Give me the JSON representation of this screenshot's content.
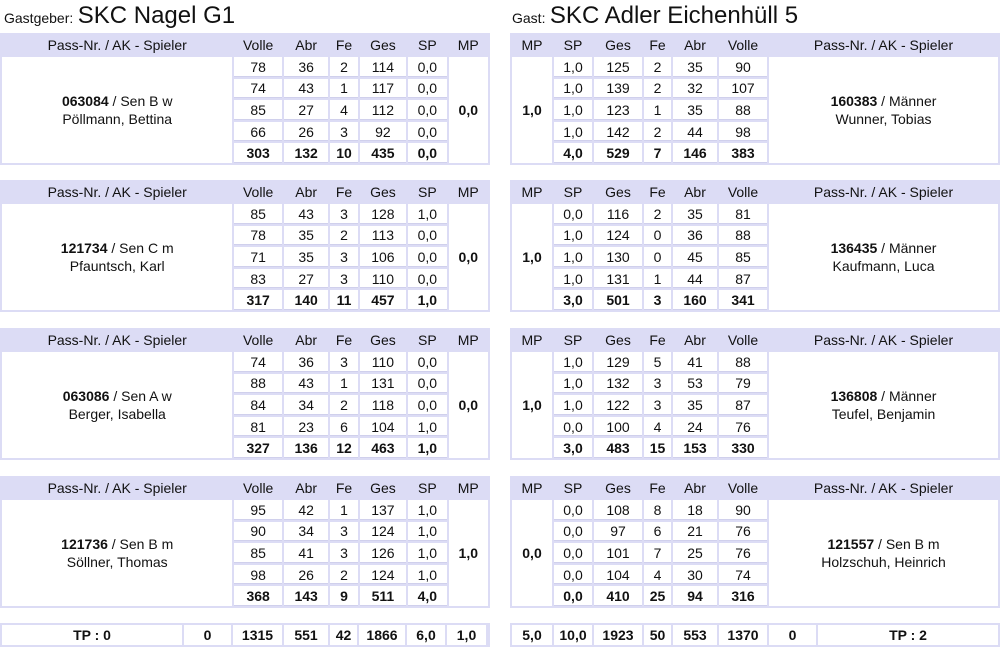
{
  "home": {
    "label": "Gastgeber:",
    "name": "SKC Nagel G1"
  },
  "guest": {
    "label": "Gast:",
    "name": "SKC Adler Eichenhüll 5"
  },
  "headers": {
    "player": "Pass-Nr. / AK - Spieler",
    "volle": "Volle",
    "abr": "Abr",
    "fe": "Fe",
    "ges": "Ges",
    "sp": "SP",
    "mp": "MP"
  },
  "matches": [
    {
      "home": {
        "pass": "063084",
        "info": "/ Sen B w",
        "name": "Pöllmann, Bettina",
        "mp": "0,0",
        "rows": [
          [
            "78",
            "36",
            "2",
            "114",
            "0,0"
          ],
          [
            "74",
            "43",
            "1",
            "117",
            "0,0"
          ],
          [
            "85",
            "27",
            "4",
            "112",
            "0,0"
          ],
          [
            "66",
            "26",
            "3",
            "92",
            "0,0"
          ]
        ],
        "total": [
          "303",
          "132",
          "10",
          "435",
          "0,0"
        ]
      },
      "guest": {
        "pass": "160383",
        "info": "/ Männer",
        "name": "Wunner, Tobias",
        "mp": "1,0",
        "rows": [
          [
            "1,0",
            "125",
            "2",
            "35",
            "90"
          ],
          [
            "1,0",
            "139",
            "2",
            "32",
            "107"
          ],
          [
            "1,0",
            "123",
            "1",
            "35",
            "88"
          ],
          [
            "1,0",
            "142",
            "2",
            "44",
            "98"
          ]
        ],
        "total": [
          "4,0",
          "529",
          "7",
          "146",
          "383"
        ]
      }
    },
    {
      "home": {
        "pass": "121734",
        "info": "/ Sen C m",
        "name": "Pfauntsch, Karl",
        "mp": "0,0",
        "rows": [
          [
            "85",
            "43",
            "3",
            "128",
            "1,0"
          ],
          [
            "78",
            "35",
            "2",
            "113",
            "0,0"
          ],
          [
            "71",
            "35",
            "3",
            "106",
            "0,0"
          ],
          [
            "83",
            "27",
            "3",
            "110",
            "0,0"
          ]
        ],
        "total": [
          "317",
          "140",
          "11",
          "457",
          "1,0"
        ]
      },
      "guest": {
        "pass": "136435",
        "info": "/ Männer",
        "name": "Kaufmann, Luca",
        "mp": "1,0",
        "rows": [
          [
            "0,0",
            "116",
            "2",
            "35",
            "81"
          ],
          [
            "1,0",
            "124",
            "0",
            "36",
            "88"
          ],
          [
            "1,0",
            "130",
            "0",
            "45",
            "85"
          ],
          [
            "1,0",
            "131",
            "1",
            "44",
            "87"
          ]
        ],
        "total": [
          "3,0",
          "501",
          "3",
          "160",
          "341"
        ]
      }
    },
    {
      "home": {
        "pass": "063086",
        "info": "/ Sen A w",
        "name": "Berger, Isabella",
        "mp": "0,0",
        "rows": [
          [
            "74",
            "36",
            "3",
            "110",
            "0,0"
          ],
          [
            "88",
            "43",
            "1",
            "131",
            "0,0"
          ],
          [
            "84",
            "34",
            "2",
            "118",
            "0,0"
          ],
          [
            "81",
            "23",
            "6",
            "104",
            "1,0"
          ]
        ],
        "total": [
          "327",
          "136",
          "12",
          "463",
          "1,0"
        ]
      },
      "guest": {
        "pass": "136808",
        "info": "/ Männer",
        "name": "Teufel, Benjamin",
        "mp": "1,0",
        "rows": [
          [
            "1,0",
            "129",
            "5",
            "41",
            "88"
          ],
          [
            "1,0",
            "132",
            "3",
            "53",
            "79"
          ],
          [
            "1,0",
            "122",
            "3",
            "35",
            "87"
          ],
          [
            "0,0",
            "100",
            "4",
            "24",
            "76"
          ]
        ],
        "total": [
          "3,0",
          "483",
          "15",
          "153",
          "330"
        ]
      }
    },
    {
      "home": {
        "pass": "121736",
        "info": "/ Sen B m",
        "name": "Söllner, Thomas",
        "mp": "1,0",
        "rows": [
          [
            "95",
            "42",
            "1",
            "137",
            "1,0"
          ],
          [
            "90",
            "34",
            "3",
            "124",
            "1,0"
          ],
          [
            "85",
            "41",
            "3",
            "126",
            "1,0"
          ],
          [
            "98",
            "26",
            "2",
            "124",
            "1,0"
          ]
        ],
        "total": [
          "368",
          "143",
          "9",
          "511",
          "4,0"
        ]
      },
      "guest": {
        "pass": "121557",
        "info": "/ Sen B m",
        "name": "Holzschuh, Heinrich",
        "mp": "0,0",
        "rows": [
          [
            "0,0",
            "108",
            "8",
            "18",
            "90"
          ],
          [
            "0,0",
            "97",
            "6",
            "21",
            "76"
          ],
          [
            "0,0",
            "101",
            "7",
            "25",
            "76"
          ],
          [
            "0,0",
            "104",
            "4",
            "30",
            "74"
          ]
        ],
        "total": [
          "0,0",
          "410",
          "25",
          "94",
          "316"
        ]
      }
    }
  ],
  "footer": {
    "home": {
      "tp": "TP : 0",
      "zero": "0",
      "volle": "1315",
      "abr": "551",
      "fe": "42",
      "ges": "1866",
      "sp": "6,0",
      "mp": "1,0"
    },
    "guest": {
      "mp": "5,0",
      "sp": "10,0",
      "ges": "1923",
      "fe": "50",
      "abr": "553",
      "volle": "1370",
      "zero": "0",
      "tp": "TP : 2"
    }
  },
  "colors": {
    "header_bg": "#dcdcf5",
    "row_line": "#d0d0ec"
  }
}
